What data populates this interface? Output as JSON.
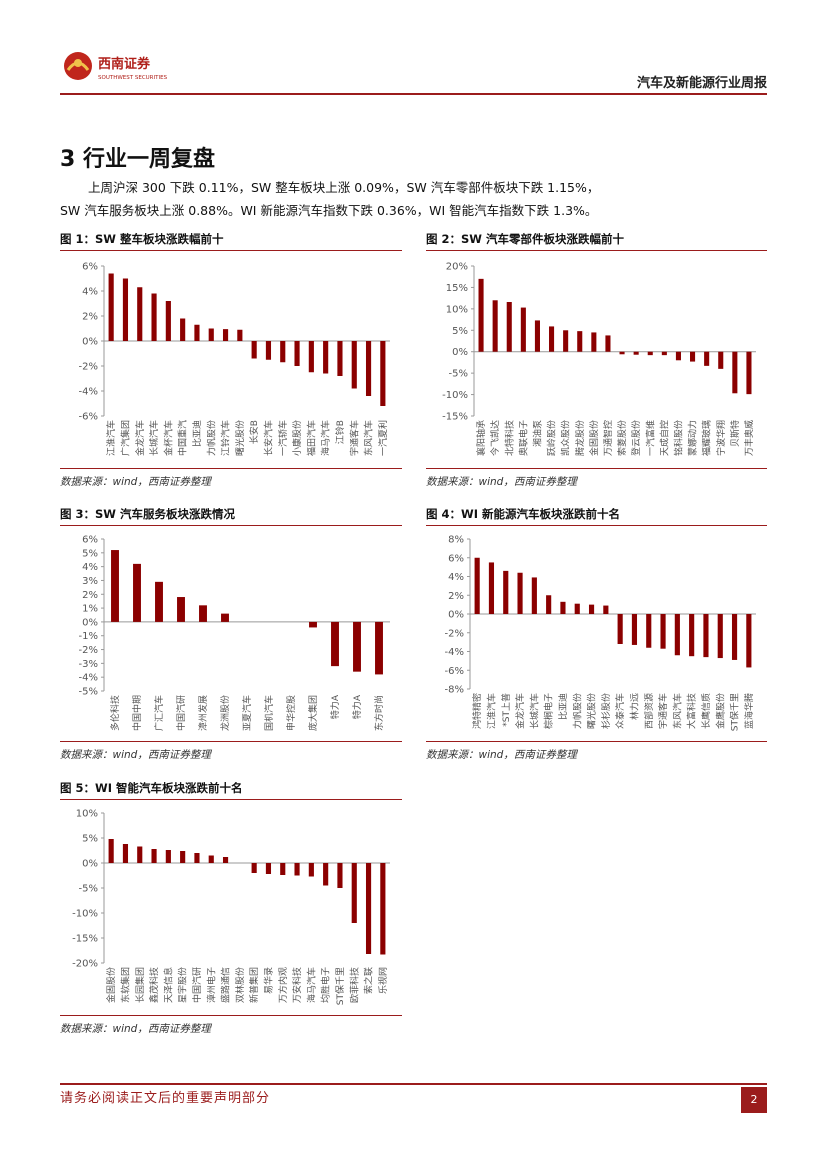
{
  "header": {
    "logo_cn": "西南证券",
    "logo_en": "SOUTHWEST SECURITIES",
    "report_title": "汽车及新能源行业周报"
  },
  "section": {
    "title": "3 行业一周复盘",
    "para_line1": "上周沪深 300 下跌 0.11%，SW 整车板块上涨 0.09%，SW 汽车零部件板块下跌 1.15%，",
    "para_line2": "SW 汽车服务板块上涨 0.88%。WI 新能源汽车指数下跌 0.36%，WI 智能汽车指数下跌 1.3%。"
  },
  "source_text": "数据来源：wind，西南证券整理",
  "colors": {
    "bar": "#8b0000",
    "accent": "#9b1c1c",
    "axis": "#999999",
    "tick": "#555555"
  },
  "chart_data": [
    {
      "type": "bar",
      "title": "图 1：SW 整车板块涨跌幅前十",
      "ylim": [
        -6,
        6
      ],
      "yticks": [
        6,
        4,
        2,
        0,
        -2,
        -4,
        -6
      ],
      "tick_suffix": "%",
      "categories": [
        "江淮汽车",
        "广汽集团",
        "金龙汽车",
        "长城汽车",
        "金杯汽车",
        "中国重汽",
        "比亚迪",
        "力帆股份",
        "江铃汽车",
        "曙光股份",
        "长安B",
        "长安汽车",
        "一汽轿车",
        "小康股份",
        "福田汽车",
        "海马汽车",
        "江铃B",
        "宇通客车",
        "东风汽车",
        "一汽夏利"
      ],
      "values": [
        5.4,
        5.0,
        4.3,
        3.8,
        3.2,
        1.8,
        1.3,
        1.0,
        0.95,
        0.9,
        -1.4,
        -1.5,
        -1.7,
        -2.0,
        -2.5,
        -2.6,
        -2.8,
        -3.8,
        -4.4,
        -5.2
      ]
    },
    {
      "type": "bar",
      "title": "图 2：SW 汽车零部件板块涨跌幅前十",
      "ylim": [
        -15,
        20
      ],
      "yticks": [
        20,
        15,
        10,
        5,
        0,
        -5,
        -10,
        -15
      ],
      "tick_suffix": "%",
      "categories": [
        "襄阳轴承",
        "今飞凯达",
        "北特科技",
        "奥联电子",
        "湘油泵",
        "跃岭股份",
        "凯众股份",
        "腾龙股份",
        "金固股份",
        "万通智控",
        "索菱股份",
        "登云股份",
        "一汽富维",
        "天成自控",
        "铭科股份",
        "蒙娜动力",
        "福耀玻璃",
        "宁波华翔",
        "贝斯特",
        "万丰奥威"
      ],
      "values": [
        17.0,
        12.0,
        11.6,
        10.3,
        7.3,
        5.9,
        5.0,
        4.8,
        4.5,
        3.8,
        -0.6,
        -0.7,
        -0.8,
        -0.8,
        -2.0,
        -2.3,
        -3.3,
        -4.0,
        -9.7,
        -9.9
      ]
    },
    {
      "type": "bar",
      "title": "图 3：SW 汽车服务板块涨跌情况",
      "ylim": [
        -5,
        6
      ],
      "yticks": [
        6,
        5,
        4,
        3,
        2,
        1,
        0,
        -1,
        -2,
        -3,
        -4,
        -5
      ],
      "tick_suffix": "%",
      "categories": [
        "多伦科技",
        "中国中期",
        "广汇汽车",
        "中国汽研",
        "漳州发展",
        "龙洲股份",
        "亚夏汽车",
        "国机汽车",
        "申华控股",
        "庞大集团",
        "特力A",
        "特力A",
        "东方时尚"
      ],
      "values": [
        5.2,
        4.2,
        2.9,
        1.8,
        1.2,
        0.6,
        0,
        0,
        0,
        -0.4,
        -3.2,
        -3.6,
        -3.8
      ]
    },
    {
      "type": "bar",
      "title": "图 4：WI 新能源汽车板块涨跌前十名",
      "ylim": [
        -8,
        8
      ],
      "yticks": [
        8,
        6,
        4,
        2,
        0,
        -2,
        -4,
        -6,
        -8
      ],
      "tick_suffix": "%",
      "categories": [
        "鸿特精密",
        "江淮汽车",
        "*ST上普",
        "金龙汽车",
        "长城汽车",
        "棕榈电子",
        "比亚迪",
        "力帆股份",
        "曙光股份",
        "杉杉股份",
        "众泰汽车",
        "林力远",
        "西部资源",
        "宇通客车",
        "东风汽车",
        "大富科技",
        "长鹰信质",
        "金鹰股份",
        "ST保千里",
        "蓝海华腾"
      ],
      "values": [
        6.0,
        5.5,
        4.6,
        4.4,
        3.9,
        2.0,
        1.3,
        1.1,
        1.0,
        0.9,
        -3.2,
        -3.3,
        -3.6,
        -3.7,
        -4.4,
        -4.5,
        -4.6,
        -4.7,
        -4.9,
        -5.7
      ]
    },
    {
      "type": "bar",
      "title": "图 5：WI 智能汽车板块涨跌前十名",
      "ylim": [
        -20,
        10
      ],
      "yticks": [
        10,
        5,
        0,
        -5,
        -10,
        -15,
        -20
      ],
      "tick_suffix": "%",
      "categories": [
        "金固股份",
        "东软集团",
        "长园集团",
        "鑫茂科技",
        "天泽信息",
        "星宇股份",
        "中国汽研",
        "漳州电子",
        "盛路通信",
        "双林股份",
        "新普集团",
        "易华录",
        "万方内观",
        "万安科技",
        "海马汽车",
        "均胜电子",
        "ST保千里",
        "欧菲科技",
        "索之联",
        "乐视网"
      ],
      "values": [
        4.8,
        3.8,
        3.3,
        2.8,
        2.6,
        2.4,
        2.0,
        1.5,
        1.2,
        0,
        -2.0,
        -2.2,
        -2.4,
        -2.5,
        -2.7,
        -4.5,
        -5.0,
        -12.0,
        -18.2,
        -18.3
      ]
    }
  ],
  "footer": {
    "disclaimer": "请务必阅读正文后的重要声明部分",
    "page": "2"
  }
}
